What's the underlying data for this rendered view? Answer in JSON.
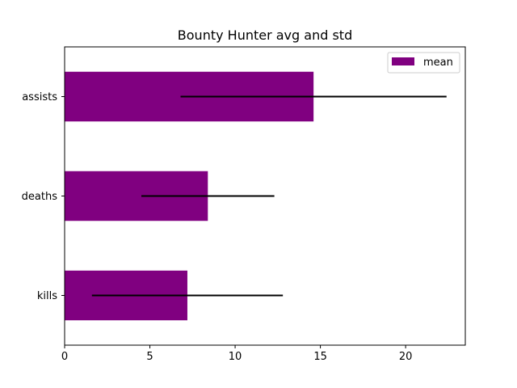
{
  "chart_data": {
    "type": "bar",
    "orientation": "horizontal",
    "title": "Bounty Hunter avg and std",
    "xlabel": "",
    "ylabel": "",
    "categories": [
      "kills",
      "deaths",
      "assists"
    ],
    "series": [
      {
        "name": "mean",
        "values": [
          7.2,
          8.4,
          14.6
        ],
        "error": [
          5.6,
          3.9,
          7.8
        ],
        "color": "#800080"
      }
    ],
    "xlim": [
      0,
      23.5
    ],
    "xticks": [
      0,
      5,
      10,
      15,
      20
    ],
    "grid": false,
    "legend_position": "upper right",
    "errorbar_color": "#000000"
  }
}
